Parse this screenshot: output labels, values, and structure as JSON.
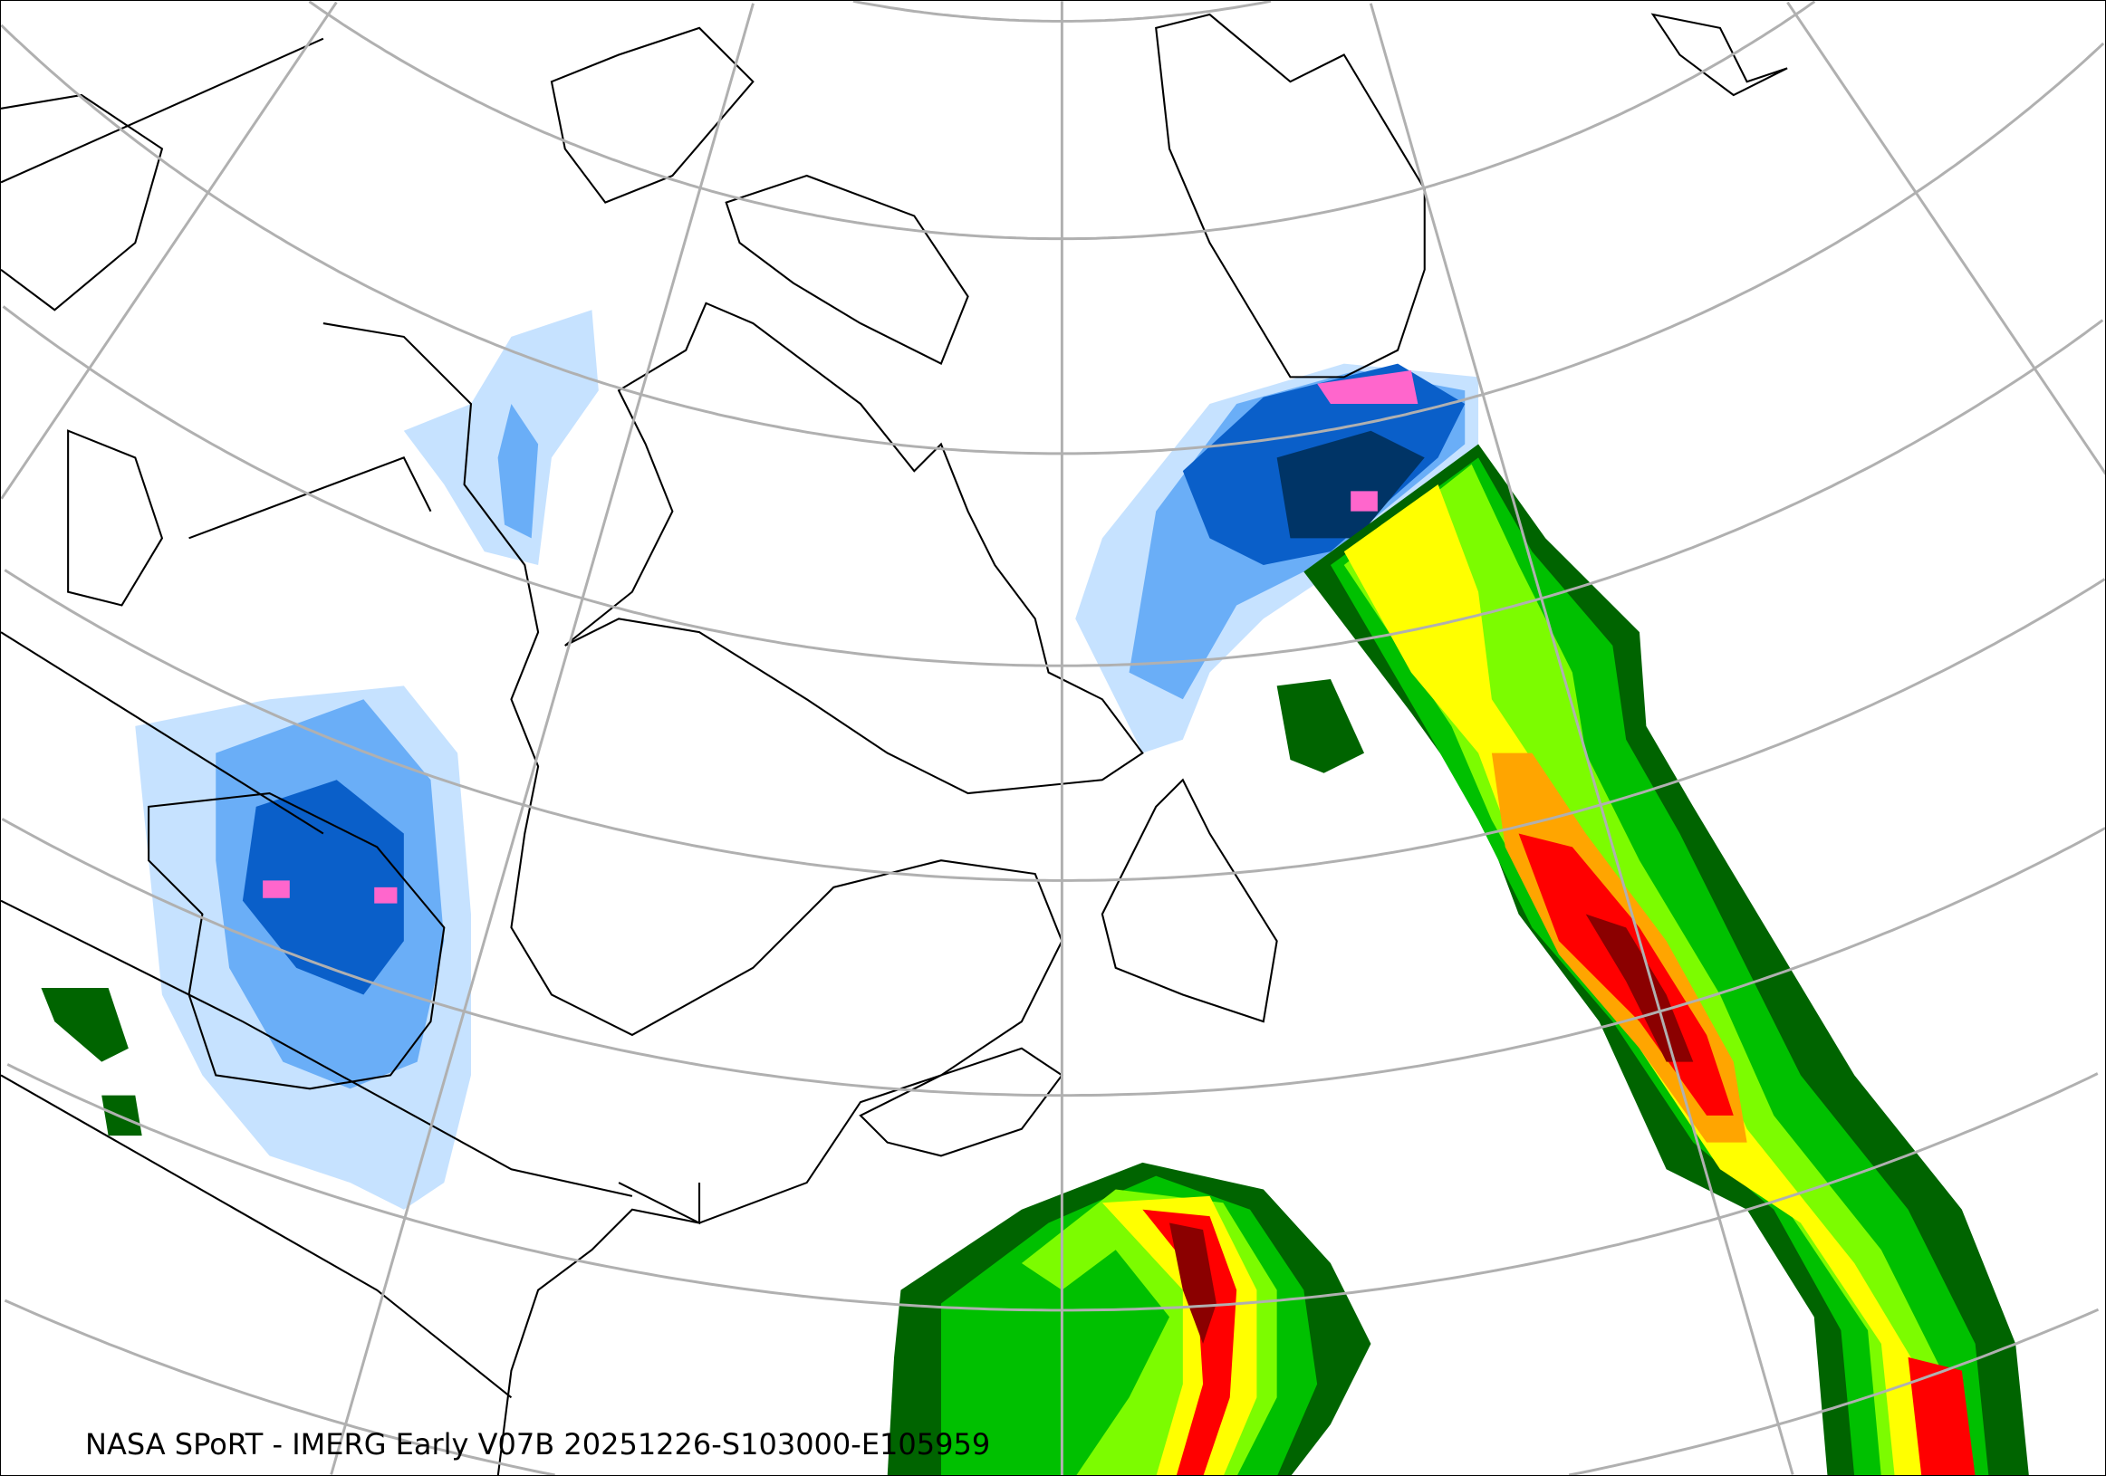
{
  "caption": "NASA SPoRT - IMERG Early V07B 20251226-S103000-E105959",
  "colors": {
    "graticule": "#b0b0b0",
    "coastline": "#000000",
    "snow_light": "#c6e2ff",
    "snow_medium": "#6aaef7",
    "snow_heavy": "#0a5fc9",
    "snow_very_heavy": "#003466",
    "snow_extreme": "#ff66cc",
    "rain_light": "#006400",
    "rain_moderate": "#00c000",
    "rain_medium": "#7cfc00",
    "rain_heavy": "#ffff00",
    "rain_very_heavy": "#ffa500",
    "rain_intense": "#ff0000",
    "rain_extreme": "#8b0000"
  }
}
